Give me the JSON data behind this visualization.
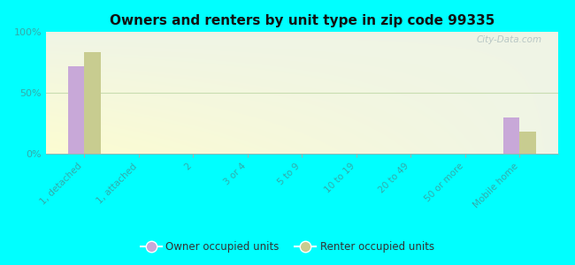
{
  "title": "Owners and renters by unit type in zip code 99335",
  "categories": [
    "1, detached",
    "1, attached",
    "2",
    "3 or 4",
    "5 to 9",
    "10 to 19",
    "20 to 49",
    "50 or more",
    "Mobile home"
  ],
  "owner_values": [
    72,
    0,
    0,
    0,
    0,
    0,
    0,
    0,
    30
  ],
  "renter_values": [
    83,
    0,
    0,
    0,
    0,
    0,
    0,
    0,
    18
  ],
  "owner_color": "#c8a8d8",
  "renter_color": "#c8cc90",
  "background_outer": "#00FFFF",
  "yticks": [
    0,
    50,
    100
  ],
  "ylabels": [
    "0%",
    "50%",
    "100%"
  ],
  "ylim": [
    0,
    100
  ],
  "bar_width": 0.3,
  "legend_owner": "Owner occupied units",
  "legend_renter": "Renter occupied units",
  "watermark": "City-Data.com",
  "tick_label_color": "#33aaaa",
  "grid_color": "#c8ddb0",
  "grad_top": "#e8f0d0",
  "grad_bottom": "#f5fae8"
}
